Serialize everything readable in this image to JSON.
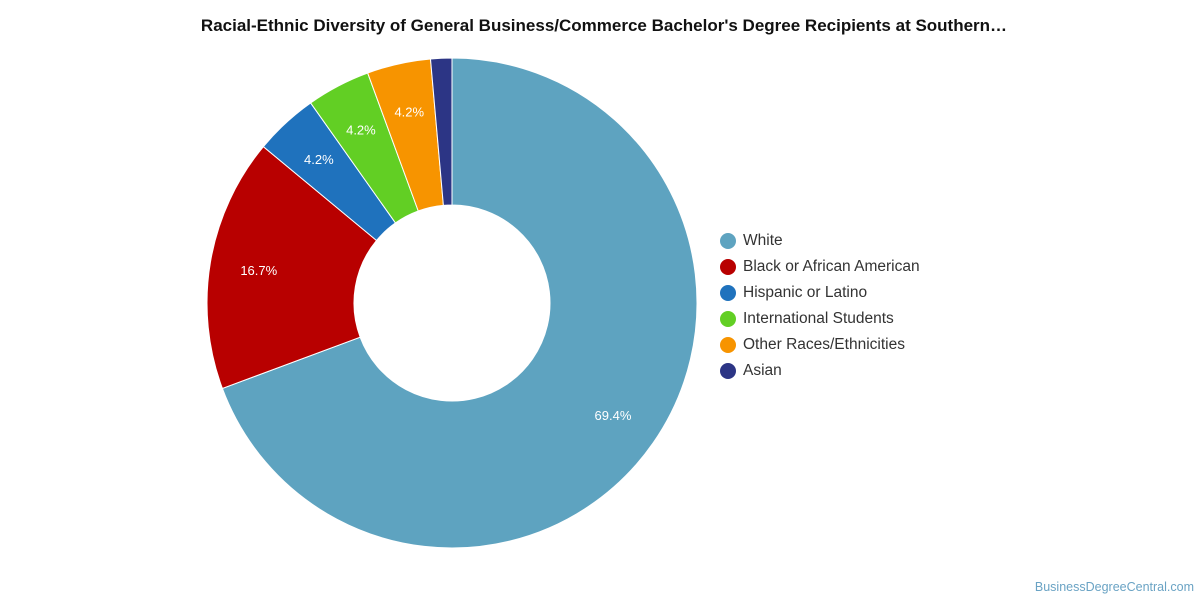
{
  "chart_data": {
    "type": "pie",
    "title": "Racial-Ethnic Diversity of General Business/Commerce Bachelor's Degree Recipients at Southern…",
    "donut": true,
    "legend_position": "right",
    "slices": [
      {
        "label": "White",
        "value": 69.4,
        "display": "69.4%",
        "color": "#5ea3c0"
      },
      {
        "label": "Black or African American",
        "value": 16.7,
        "display": "16.7%",
        "color": "#b80000"
      },
      {
        "label": "Hispanic or Latino",
        "value": 4.2,
        "display": "4.2%",
        "color": "#1f72bd"
      },
      {
        "label": "International Students",
        "value": 4.2,
        "display": "4.2%",
        "color": "#62cf24"
      },
      {
        "label": "Other Races/Ethnicities",
        "value": 4.2,
        "display": "4.2%",
        "color": "#f79400"
      },
      {
        "label": "Asian",
        "value": 1.4,
        "display": "",
        "color": "#2c3585"
      }
    ]
  },
  "credit": "BusinessDegreeCentral.com"
}
